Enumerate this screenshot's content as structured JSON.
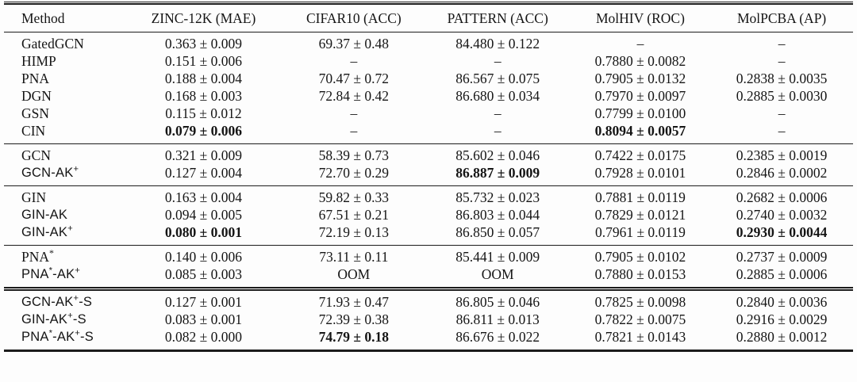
{
  "colors": {
    "text": "#151515",
    "rule": "#1c1c1c",
    "background": "#fdfdfd"
  },
  "table": {
    "columns": [
      {
        "label": "Method"
      },
      {
        "label": "ZINC-12K (MAE)"
      },
      {
        "label": "CIFAR10 (ACC)"
      },
      {
        "label": "PATTERN (ACC)"
      },
      {
        "label": "MolHIV (ROC)"
      },
      {
        "label": "MolPCBA (AP)"
      }
    ],
    "missing_marker": "–",
    "groups": [
      {
        "double_rule_top": false,
        "rows": [
          {
            "method": "GatedGCN",
            "method_font": "serif",
            "cells": [
              "0.363 ± 0.009",
              "69.37 ± 0.48",
              "84.480 ± 0.122",
              "–",
              "–"
            ],
            "bold": [
              false,
              false,
              false,
              false,
              false
            ]
          },
          {
            "method": "HIMP",
            "method_font": "serif",
            "cells": [
              "0.151 ± 0.006",
              "–",
              "–",
              "0.7880 ± 0.0082",
              "–"
            ],
            "bold": [
              false,
              false,
              false,
              false,
              false
            ]
          },
          {
            "method": "PNA",
            "method_font": "serif",
            "cells": [
              "0.188 ± 0.004",
              "70.47 ± 0.72",
              "86.567 ± 0.075",
              "0.7905 ± 0.0132",
              "0.2838 ± 0.0035"
            ],
            "bold": [
              false,
              false,
              false,
              false,
              false
            ]
          },
          {
            "method": "DGN",
            "method_font": "serif",
            "cells": [
              "0.168 ± 0.003",
              "72.84 ± 0.42",
              "86.680 ± 0.034",
              "0.7970 ± 0.0097",
              "0.2885 ± 0.0030"
            ],
            "bold": [
              false,
              false,
              false,
              false,
              false
            ]
          },
          {
            "method": "GSN",
            "method_font": "serif",
            "cells": [
              "0.115 ± 0.012",
              "–",
              "–",
              "0.7799 ± 0.0100",
              "–"
            ],
            "bold": [
              false,
              false,
              false,
              false,
              false
            ]
          },
          {
            "method": "CIN",
            "method_font": "serif",
            "cells": [
              "0.079 ± 0.006",
              "–",
              "–",
              "0.8094 ± 0.0057",
              "–"
            ],
            "bold": [
              true,
              false,
              false,
              true,
              false
            ]
          }
        ]
      },
      {
        "double_rule_top": false,
        "rows": [
          {
            "method": "GCN",
            "method_font": "serif",
            "cells": [
              "0.321 ± 0.009",
              "58.39 ± 0.73",
              "85.602 ± 0.046",
              "0.7422 ± 0.0175",
              "0.2385 ± 0.0019"
            ],
            "bold": [
              false,
              false,
              false,
              false,
              false
            ]
          },
          {
            "method": "GCN-AK+",
            "method_font": "sans",
            "cells": [
              "0.127 ± 0.004",
              "72.70 ± 0.29",
              "86.887 ± 0.009",
              "0.7928 ± 0.0101",
              "0.2846 ± 0.0002"
            ],
            "bold": [
              false,
              false,
              true,
              false,
              false
            ]
          }
        ]
      },
      {
        "double_rule_top": false,
        "rows": [
          {
            "method": "GIN",
            "method_font": "serif",
            "cells": [
              "0.163 ± 0.004",
              "59.82 ± 0.33",
              "85.732 ± 0.023",
              "0.7881 ± 0.0119",
              "0.2682 ± 0.0006"
            ],
            "bold": [
              false,
              false,
              false,
              false,
              false
            ]
          },
          {
            "method": "GIN-AK",
            "method_font": "sans",
            "cells": [
              "0.094 ± 0.005",
              "67.51 ± 0.21",
              "86.803 ± 0.044",
              "0.7829 ± 0.0121",
              "0.2740 ± 0.0032"
            ],
            "bold": [
              false,
              false,
              false,
              false,
              false
            ]
          },
          {
            "method": "GIN-AK+",
            "method_font": "sans",
            "cells": [
              "0.080 ± 0.001",
              "72.19 ± 0.13",
              "86.850 ± 0.057",
              "0.7961 ± 0.0119",
              "0.2930 ± 0.0044"
            ],
            "bold": [
              true,
              false,
              false,
              false,
              true
            ]
          }
        ]
      },
      {
        "double_rule_top": false,
        "rows": [
          {
            "method": "PNA*",
            "method_font": "serif",
            "cells": [
              "0.140 ± 0.006",
              "73.11 ± 0.11",
              "85.441 ± 0.009",
              "0.7905 ± 0.0102",
              "0.2737 ± 0.0009"
            ],
            "bold": [
              false,
              false,
              false,
              false,
              false
            ]
          },
          {
            "method": "PNA*-AK+",
            "method_font": "sans",
            "cells": [
              "0.085 ± 0.003",
              "OOM",
              "OOM",
              "0.7880 ± 0.0153",
              "0.2885 ± 0.0006"
            ],
            "bold": [
              false,
              false,
              false,
              false,
              false
            ]
          }
        ]
      },
      {
        "double_rule_top": true,
        "rows": [
          {
            "method": "GCN-AK+-S",
            "method_font": "sans",
            "cells": [
              "0.127 ± 0.001",
              "71.93 ± 0.47",
              "86.805 ± 0.046",
              "0.7825 ± 0.0098",
              "0.2840 ± 0.0036"
            ],
            "bold": [
              false,
              false,
              false,
              false,
              false
            ]
          },
          {
            "method": "GIN-AK+-S",
            "method_font": "sans",
            "cells": [
              "0.083 ± 0.001",
              "72.39 ± 0.38",
              "86.811 ± 0.013",
              "0.7822 ± 0.0075",
              "0.2916 ± 0.0029"
            ],
            "bold": [
              false,
              false,
              false,
              false,
              false
            ]
          },
          {
            "method": "PNA*-AK+-S",
            "method_font": "sans",
            "cells": [
              "0.082 ± 0.000",
              "74.79 ± 0.18",
              "86.676 ± 0.022",
              "0.7821 ± 0.0143",
              "0.2880 ± 0.0012"
            ],
            "bold": [
              false,
              true,
              false,
              false,
              false
            ]
          }
        ]
      }
    ]
  }
}
